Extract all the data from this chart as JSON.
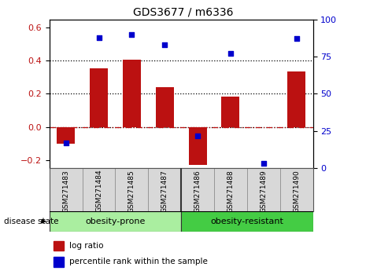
{
  "title": "GDS3677 / m6336",
  "samples": [
    "GSM271483",
    "GSM271484",
    "GSM271485",
    "GSM271487",
    "GSM271486",
    "GSM271488",
    "GSM271489",
    "GSM271490"
  ],
  "log_ratio": [
    -0.1,
    0.355,
    0.405,
    0.24,
    -0.23,
    0.185,
    0.0,
    0.335
  ],
  "percentile_rank": [
    17,
    88,
    90,
    83,
    22,
    77,
    3,
    87
  ],
  "bar_color": "#bb1111",
  "dot_color": "#0000cc",
  "groups": [
    {
      "label": "obesity-prone",
      "indices": [
        0,
        1,
        2,
        3
      ],
      "color": "#aaeea0"
    },
    {
      "label": "obesity-resistant",
      "indices": [
        4,
        5,
        6,
        7
      ],
      "color": "#44cc44"
    }
  ],
  "ylim_left": [
    -0.25,
    0.65
  ],
  "ylim_right": [
    0,
    100
  ],
  "yticks_left": [
    -0.2,
    0.0,
    0.2,
    0.4,
    0.6
  ],
  "yticks_right": [
    0,
    25,
    50,
    75,
    100
  ],
  "hlines": [
    0.2,
    0.4
  ],
  "disease_state_label": "disease state",
  "legend_bar_label": "log ratio",
  "legend_dot_label": "percentile rank within the sample",
  "tick_label_bg": "#d8d8d8",
  "group_border_color": "#333333"
}
